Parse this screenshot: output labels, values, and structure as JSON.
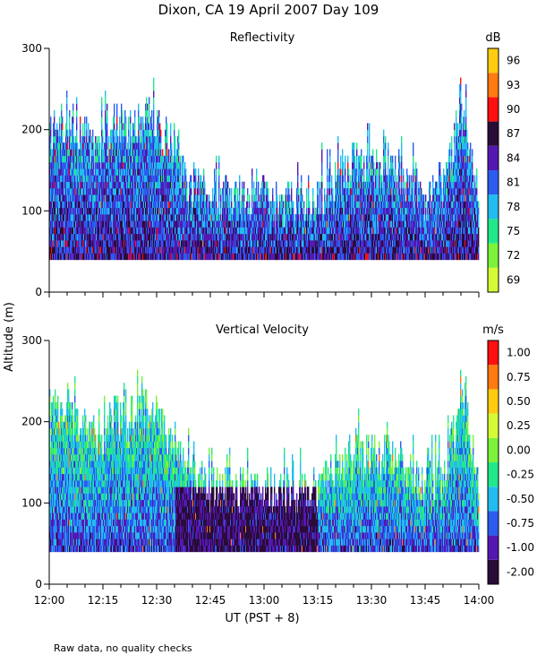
{
  "page": {
    "title": "Dixon, CA 19 April 2007  Day 109",
    "y_axis_label": "Altitude (m)",
    "x_axis_label": "UT  (PST + 8)",
    "footnote": "Raw data, no quality checks"
  },
  "chart_data": [
    {
      "type": "heatmap",
      "title": "Reflectivity",
      "xlabel": "UT  (PST + 8)",
      "ylabel": "Altitude (m)",
      "xlim": [
        0,
        120
      ],
      "ylim": [
        0,
        300
      ],
      "x_tick_values": [
        0,
        15,
        30,
        45,
        60,
        75,
        90,
        105,
        120
      ],
      "x_tick_labels": [
        "12:00",
        "12:15",
        "12:30",
        "12:45",
        "13:00",
        "13:15",
        "13:30",
        "13:45",
        "14:00"
      ],
      "y_tick_values": [
        0,
        100,
        200,
        300
      ],
      "y_tick_labels": [
        "0",
        "100",
        "200",
        "300"
      ],
      "colorbar": {
        "unit": "dB",
        "levels": [
          "69",
          "72",
          "75",
          "78",
          "81",
          "84",
          "87",
          "90",
          "93",
          "96"
        ],
        "colors": [
          "#d4fc34",
          "#7cf23a",
          "#22e88c",
          "#22bcf0",
          "#2a5cf0",
          "#5418b0",
          "#2a0c38",
          "#ff1010",
          "#ff7a10",
          "#ffcc10"
        ]
      },
      "lowest_gate_m": 40,
      "echo_top_m": [
        {
          "t": 0,
          "alt": 200
        },
        {
          "t": 3,
          "alt": 220
        },
        {
          "t": 7,
          "alt": 200
        },
        {
          "t": 10,
          "alt": 210
        },
        {
          "t": 13,
          "alt": 170
        },
        {
          "t": 18,
          "alt": 210
        },
        {
          "t": 22,
          "alt": 200
        },
        {
          "t": 27,
          "alt": 220
        },
        {
          "t": 30,
          "alt": 200
        },
        {
          "t": 36,
          "alt": 175
        },
        {
          "t": 38,
          "alt": 140
        },
        {
          "t": 45,
          "alt": 120
        },
        {
          "t": 55,
          "alt": 120
        },
        {
          "t": 60,
          "alt": 120
        },
        {
          "t": 65,
          "alt": 110
        },
        {
          "t": 75,
          "alt": 120
        },
        {
          "t": 80,
          "alt": 140
        },
        {
          "t": 85,
          "alt": 160
        },
        {
          "t": 90,
          "alt": 160
        },
        {
          "t": 95,
          "alt": 160
        },
        {
          "t": 100,
          "alt": 140
        },
        {
          "t": 105,
          "alt": 120
        },
        {
          "t": 110,
          "alt": 140
        },
        {
          "t": 113,
          "alt": 180
        },
        {
          "t": 116,
          "alt": 240
        },
        {
          "t": 118,
          "alt": 160
        },
        {
          "t": 120,
          "alt": 140
        }
      ]
    },
    {
      "type": "heatmap",
      "title": "Vertical Velocity",
      "xlabel": "UT  (PST + 8)",
      "ylabel": "Altitude (m)",
      "xlim": [
        0,
        120
      ],
      "ylim": [
        0,
        300
      ],
      "x_tick_values": [
        0,
        15,
        30,
        45,
        60,
        75,
        90,
        105,
        120
      ],
      "x_tick_labels": [
        "12:00",
        "12:15",
        "12:30",
        "12:45",
        "13:00",
        "13:15",
        "13:30",
        "13:45",
        "14:00"
      ],
      "y_tick_values": [
        0,
        100,
        200,
        300
      ],
      "y_tick_labels": [
        "0",
        "100",
        "200",
        "300"
      ],
      "colorbar": {
        "unit": "m/s",
        "levels": [
          "-2.00",
          "-1.00",
          "-0.75",
          "-0.50",
          "-0.25",
          "0.00",
          "0.25",
          "0.50",
          "0.75",
          "1.00"
        ],
        "colors": [
          "#2a0c38",
          "#5418b0",
          "#2a5cf0",
          "#22bcf0",
          "#22e88c",
          "#7cf23a",
          "#d4fc34",
          "#ffcc10",
          "#ff7a10",
          "#ff1010"
        ]
      },
      "lowest_gate_m": 40,
      "echo_top_m": [
        {
          "t": 0,
          "alt": 200
        },
        {
          "t": 3,
          "alt": 220
        },
        {
          "t": 7,
          "alt": 200
        },
        {
          "t": 10,
          "alt": 210
        },
        {
          "t": 13,
          "alt": 170
        },
        {
          "t": 18,
          "alt": 210
        },
        {
          "t": 22,
          "alt": 200
        },
        {
          "t": 27,
          "alt": 220
        },
        {
          "t": 30,
          "alt": 200
        },
        {
          "t": 36,
          "alt": 175
        },
        {
          "t": 38,
          "alt": 140
        },
        {
          "t": 45,
          "alt": 120
        },
        {
          "t": 55,
          "alt": 120
        },
        {
          "t": 60,
          "alt": 120
        },
        {
          "t": 65,
          "alt": 110
        },
        {
          "t": 75,
          "alt": 120
        },
        {
          "t": 80,
          "alt": 140
        },
        {
          "t": 85,
          "alt": 160
        },
        {
          "t": 90,
          "alt": 160
        },
        {
          "t": 95,
          "alt": 160
        },
        {
          "t": 100,
          "alt": 140
        },
        {
          "t": 105,
          "alt": 120
        },
        {
          "t": 110,
          "alt": 140
        },
        {
          "t": 113,
          "alt": 180
        },
        {
          "t": 116,
          "alt": 240
        },
        {
          "t": 118,
          "alt": 160
        },
        {
          "t": 120,
          "alt": 140
        }
      ]
    }
  ]
}
